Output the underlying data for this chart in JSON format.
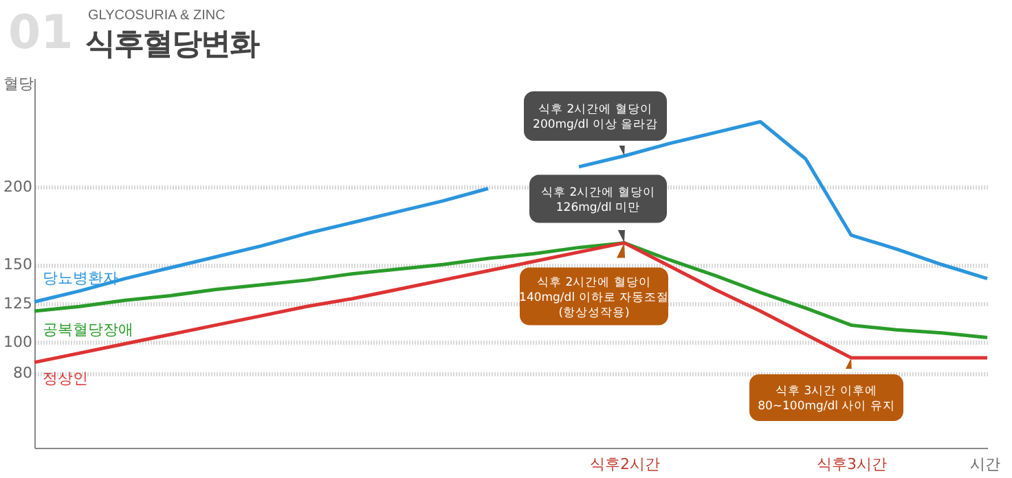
{
  "chart_data": {
    "type": "line",
    "title": "식후혈당변화",
    "subtitle": "GLYCOSURIA & ZINC",
    "xlabel": "시간",
    "ylabel": "혈당",
    "categories": [
      null,
      null,
      null,
      null,
      null,
      null,
      null,
      null,
      null,
      null,
      null,
      null,
      null,
      "식후2시간",
      null,
      null,
      null,
      null,
      "식후3시간",
      null,
      null,
      null
    ],
    "ylim": [
      32,
      270
    ],
    "yticks": [
      80,
      100,
      125,
      150,
      200
    ],
    "grid": "y",
    "series": [
      {
        "name": "당뇨병환자",
        "color": "#2b95dc",
        "values": [
          126,
          133,
          141,
          148,
          155,
          162,
          170,
          177,
          184,
          191,
          199,
          null,
          213,
          220,
          228,
          235,
          242,
          218,
          169,
          160,
          150,
          141
        ]
      },
      {
        "name": "공복혈당장애",
        "color": "#2a9b2a",
        "values": [
          120,
          123,
          127,
          130,
          134,
          137,
          140,
          144,
          147,
          150,
          154,
          157,
          161,
          164,
          153,
          143,
          132,
          122,
          111,
          108,
          106,
          103
        ]
      },
      {
        "name": "정상인",
        "color": "#dd3333",
        "values": [
          87,
          93,
          99,
          105,
          111,
          117,
          123,
          128,
          134,
          140,
          146,
          152,
          158,
          164,
          149,
          134,
          120,
          105,
          90,
          90,
          90,
          90
        ]
      }
    ],
    "annotations": [
      "01",
      {
        "text": "식후 2시간에 혈당이\n200mg/dl 이상 올라감",
        "x": "식후2시간",
        "y": 220
      },
      {
        "text": "식후 2시간에 혈당이\n126mg/dl 미만",
        "x": "식후2시간",
        "y": 164
      },
      {
        "text": "식후 2시간에 혈당이\n140mg/dl 이하로 자동조절\n(항상성작용)",
        "x": "식후2시간",
        "y": 164
      },
      {
        "text": "식후 3시간 이후에\n80~100mg/dl 사이 유지",
        "x": "식후3시간",
        "y": 90
      }
    ]
  }
}
